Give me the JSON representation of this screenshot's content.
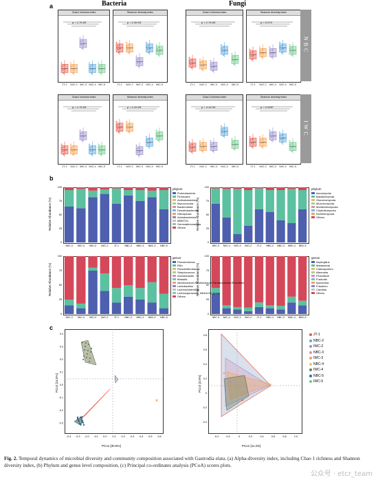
{
  "figure": {
    "panel_a": "a",
    "panel_b": "b",
    "panel_c": "c",
    "col_bacteria": "Bacteria",
    "col_fungi": "Fungi",
    "tab_nbc": "NBC",
    "tab_iwc": "IWC",
    "chao_title": "Chao1 richness index",
    "shannon_title": "Shannon diversity index",
    "groups": [
      "JT-1",
      "IWC-2",
      "IWC-3",
      "NBC-3",
      "NBC-4",
      "NBC-5"
    ],
    "pvals": {
      "bac_nbc_chao": "p = 1.7e-06",
      "bac_nbc_shan": "p = 2.5e-05",
      "fun_nbc_chao": "p = 2.7e-06",
      "fun_nbc_shan": "p = 0.074",
      "bac_iwc_chao": "p = 1.7e-06",
      "bac_iwc_shan": "p = 2.2e-06",
      "fun_iwc_chao": "p = 3.1e-06",
      "fun_iwc_shan": "p = 0.0087"
    },
    "ylabel_rel": "Relative Abundance (%)",
    "bar_groups": [
      "IWC-3",
      "IWC-4",
      "IWC-3",
      "IWC-2",
      "JT-1",
      "NBC-2",
      "NBC-3",
      "NBC-4",
      "NBC-5"
    ],
    "pcoa_left_x": "PCo1 [30.6%]",
    "pcoa_left_y": "PCo2 [14.5%]",
    "pcoa_right_x": "PCo1 [11.2%]",
    "pcoa_right_y": "PCo2 [4.5%]",
    "pcoa_legend": [
      "JT-1",
      "NBC-2",
      "IWC-2",
      "NBC-3",
      "IWC-3",
      "NBC-4",
      "IWC-4",
      "NBC-5",
      "IWC-5"
    ],
    "caption_lead": "Fig. 2.",
    "caption_body": "Temporal dynamics of microbial diversity and community composition associated with Gastrodia elata. (a) Alpha-diversity index, including Chao 1 richness and Shannon diversity index, (b) Phylum and genus level composition, (c) Principal co-ordinates analysis (PCoA) scores plots.",
    "watermark": "公众号 · etcr_team"
  },
  "legends": {
    "bac_phylum_title": "phylum",
    "bac_phylum": [
      "Proteobacteria",
      "Firmicutes",
      "Actinobacteriota",
      "Myxococcota",
      "Bacteroidota",
      "Desulfobacterota",
      "Nitrospirota",
      "Acidobacteriota",
      "MBNT15",
      "Gemmatimonadota",
      "Others"
    ],
    "fun_phylum_title": "phylum",
    "fun_phylum": [
      "Ascomycota",
      "Basidiomycota",
      "Glomeromycota",
      "Mucoromycota",
      "Mortierellomycota",
      "Chytridiomycota",
      "Rozellomycota",
      "Others"
    ],
    "bac_genus_title": "genus",
    "bac_genus": [
      "Pseudomonas",
      "Ellin",
      "Pseudarthrobacter",
      "Streptococcus",
      "Acinetobacter",
      "Massilia",
      "Allorhizobium-Neorhizobium-Pararhizobium-Rhizobium",
      "Lactobacillus",
      "Lachnoclostridium",
      "Lachnospiraceae_NK4A136_group",
      "Others"
    ],
    "fun_genus_title": "genus",
    "fun_genus": [
      "Aspergillus",
      "Malassezia",
      "Cladosporium",
      "Alternaria",
      "Penicillium",
      "Fusicolla",
      "Ilyonectria",
      "Fusarium",
      "Candida",
      "Others"
    ]
  },
  "colors": {
    "c1": "#e8584a",
    "c2": "#f6a04d",
    "c3": "#9c8fd0",
    "c4": "#5aa6e0",
    "c5": "#6cc98a",
    "blue": "#4d5fae",
    "teal": "#5bc1a0",
    "red": "#d4485a",
    "grid": "#cfcfcf"
  },
  "chart_data": [
    {
      "type": "bar",
      "title": "Bacteria phylum composition",
      "categories": [
        "IWC-3",
        "IWC-4",
        "IWC-3",
        "IWC-2",
        "JT-1",
        "NBC-2",
        "NBC-3",
        "NBC-4",
        "NBC-5"
      ],
      "series": [
        {
          "name": "Proteobacteria",
          "values": [
            65,
            62,
            82,
            88,
            70,
            85,
            75,
            82,
            60
          ]
        },
        {
          "name": "Firmicutes",
          "values": [
            30,
            35,
            12,
            8,
            28,
            10,
            20,
            12,
            35
          ]
        },
        {
          "name": "Others",
          "values": [
            5,
            3,
            6,
            4,
            2,
            5,
            5,
            6,
            5
          ]
        }
      ],
      "ylim": [
        0,
        100
      ]
    },
    {
      "type": "bar",
      "title": "Fungi phylum composition",
      "categories": [
        "IWC-3",
        "IWC-4",
        "IWC-3",
        "IWC-2",
        "JT-1",
        "NBC-2",
        "NBC-3",
        "NBC-4",
        "NBC-5"
      ],
      "series": [
        {
          "name": "Ascomycota",
          "values": [
            70,
            45,
            15,
            30,
            60,
            55,
            40,
            35,
            60
          ]
        },
        {
          "name": "Basidiomycota",
          "values": [
            28,
            52,
            82,
            65,
            38,
            40,
            55,
            62,
            35
          ]
        },
        {
          "name": "Others",
          "values": [
            2,
            3,
            3,
            5,
            2,
            5,
            5,
            3,
            5
          ]
        }
      ],
      "ylim": [
        0,
        100
      ]
    },
    {
      "type": "bar",
      "title": "Bacteria genus composition",
      "categories": [
        "IWC-3",
        "IWC-4",
        "IWC-3",
        "IWC-2",
        "JT-1",
        "NBC-2",
        "NBC-3",
        "NBC-4",
        "NBC-5"
      ],
      "series": [
        {
          "name": "Pseudomonas",
          "values": [
            15,
            10,
            75,
            40,
            20,
            30,
            25,
            20,
            10
          ]
        },
        {
          "name": "Ellin",
          "values": [
            10,
            8,
            5,
            30,
            25,
            20,
            20,
            35,
            25
          ]
        },
        {
          "name": "Others",
          "values": [
            75,
            82,
            20,
            30,
            55,
            50,
            55,
            45,
            65
          ]
        }
      ],
      "ylim": [
        0,
        100
      ]
    },
    {
      "type": "bar",
      "title": "Fungi genus composition",
      "categories": [
        "IWC-3",
        "IWC-4",
        "IWC-3",
        "IWC-2",
        "JT-1",
        "NBC-2",
        "NBC-3",
        "NBC-4",
        "NBC-5"
      ],
      "series": [
        {
          "name": "Aspergillus",
          "values": [
            35,
            10,
            8,
            5,
            12,
            10,
            8,
            20,
            15
          ]
        },
        {
          "name": "Malassezia",
          "values": [
            10,
            5,
            4,
            6,
            8,
            5,
            6,
            10,
            8
          ]
        },
        {
          "name": "Others",
          "values": [
            55,
            85,
            88,
            89,
            80,
            85,
            86,
            70,
            77
          ]
        }
      ],
      "ylim": [
        0,
        100
      ]
    }
  ]
}
